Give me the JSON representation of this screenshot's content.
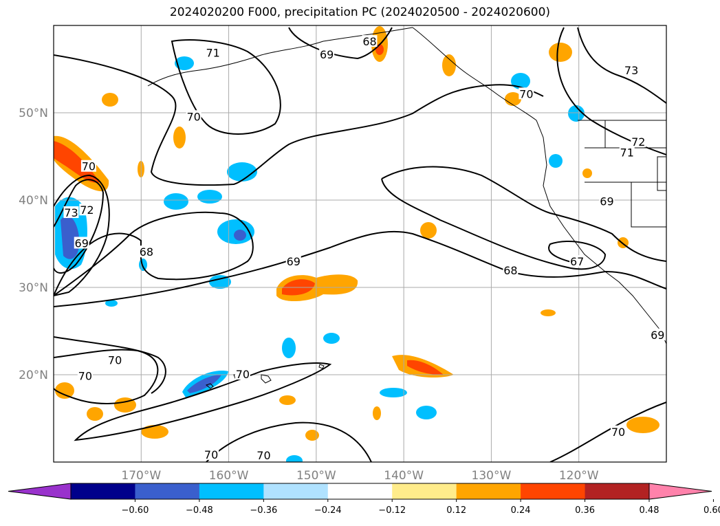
{
  "chart_data": {
    "type": "map-contour",
    "title": "2024020200 F000, precipitation PC (2024020500 - 2024020600)",
    "projection": "lat-lon",
    "lon_range": [
      -180,
      -110
    ],
    "lat_range": [
      10,
      60
    ],
    "lon_ticks": [
      {
        "value": -170,
        "label": "170°W"
      },
      {
        "value": -160,
        "label": "160°W"
      },
      {
        "value": -150,
        "label": "150°W"
      },
      {
        "value": -140,
        "label": "140°W"
      },
      {
        "value": -130,
        "label": "130°W"
      },
      {
        "value": -120,
        "label": "120°W"
      }
    ],
    "lat_ticks": [
      {
        "value": 20,
        "label": "20°N"
      },
      {
        "value": 30,
        "label": "30°N"
      },
      {
        "value": 40,
        "label": "40°N"
      },
      {
        "value": 50,
        "label": "50°N"
      }
    ],
    "grid": true,
    "colorbar": {
      "orientation": "horizontal",
      "extend": "both",
      "levels": [
        -0.6,
        -0.48,
        -0.36,
        -0.24,
        -0.12,
        0.12,
        0.24,
        0.36,
        0.48,
        0.6
      ],
      "tick_labels": [
        "−0.60",
        "−0.48",
        "−0.36",
        "−0.24",
        "−0.12",
        "0.12",
        "0.24",
        "0.36",
        "0.48",
        "0.60"
      ],
      "colors": [
        "#9932cc",
        "#00008b",
        "#3a5fcd",
        "#00bfff",
        "#b0e2ff",
        "#ffffff",
        "#ffec8b",
        "#ffa500",
        "#ff4500",
        "#b22222",
        "#ff82ab"
      ]
    },
    "contour_labels": [
      {
        "label": "71",
        "lon": -161.8,
        "lat": 56.8
      },
      {
        "label": "70",
        "lon": -164.0,
        "lat": 49.5
      },
      {
        "label": "69",
        "lon": -148.8,
        "lat": 56.6
      },
      {
        "label": "68",
        "lon": -143.9,
        "lat": 58.1
      },
      {
        "label": "70",
        "lon": -126.0,
        "lat": 52.1
      },
      {
        "label": "73",
        "lon": -114.0,
        "lat": 54.8
      },
      {
        "label": "72",
        "lon": -113.2,
        "lat": 46.6
      },
      {
        "label": "71",
        "lon": -114.5,
        "lat": 45.4
      },
      {
        "label": "69",
        "lon": -116.8,
        "lat": 39.8
      },
      {
        "label": "67",
        "lon": -120.2,
        "lat": 32.9
      },
      {
        "label": "68",
        "lon": -127.8,
        "lat": 31.9
      },
      {
        "label": "69",
        "lon": -152.6,
        "lat": 32.9
      },
      {
        "label": "68",
        "lon": -169.4,
        "lat": 34.0
      },
      {
        "label": "69",
        "lon": -176.8,
        "lat": 35.0
      },
      {
        "label": "70",
        "lon": -176.0,
        "lat": 43.8
      },
      {
        "label": "73",
        "lon": -178.0,
        "lat": 38.5
      },
      {
        "label": "72",
        "lon": -176.2,
        "lat": 38.8
      },
      {
        "label": "70",
        "lon": -176.4,
        "lat": 19.8
      },
      {
        "label": "70",
        "lon": -173.0,
        "lat": 21.6
      },
      {
        "label": "70",
        "lon": -158.4,
        "lat": 20.0
      },
      {
        "label": "70",
        "lon": -162.0,
        "lat": 10.8
      },
      {
        "label": "70",
        "lon": -156.0,
        "lat": 10.7
      },
      {
        "label": "70",
        "lon": -115.5,
        "lat": 13.4
      },
      {
        "label": "69",
        "lon": -111.0,
        "lat": 24.5
      }
    ]
  }
}
